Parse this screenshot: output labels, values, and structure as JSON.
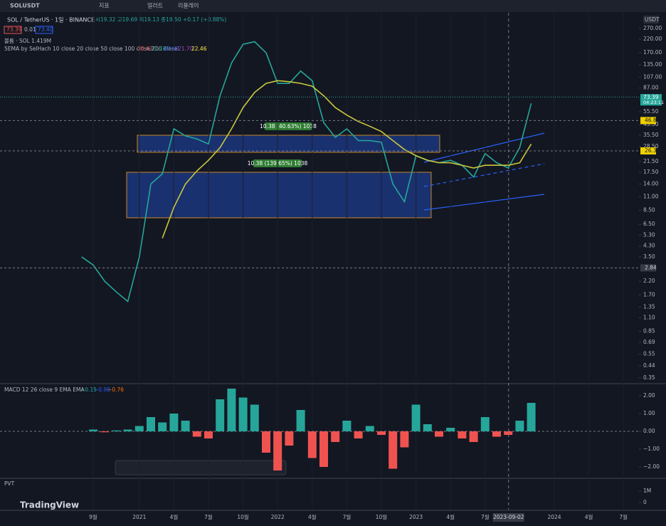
{
  "toolbar": {
    "symbol": "SOLUSDT",
    "indicators": "지표",
    "alerts": "얼러트",
    "replay": "리플레이"
  },
  "header": {
    "ohlc": "시19.32 고19.69 저19.13 종19.50 +0.17 (+0.88%)",
    "bid": "73.39",
    "spread": "0.01",
    "ask": "73.40",
    "volume": "볼륨 · SOL 1.419M",
    "ema_legend": "5EMA by SelHach 10 close 20 close 50 close 100 close 200 close",
    "ema_values": [
      "20.42",
      "21.18",
      "21.91",
      "21.70",
      "22.46"
    ]
  },
  "brand": "TradingView",
  "chart_data": [
    {
      "type": "line",
      "title": "SOL / TetherUS · 1일 · BINANCE",
      "log_scale": true,
      "currency": "USDT",
      "x": [
        "2020-08",
        "2020-09",
        "2020-10",
        "2020-11",
        "2020-12",
        "2021-01",
        "2021-02",
        "2021-03",
        "2021-04",
        "2021-05",
        "2021-06",
        "2021-07",
        "2021-08",
        "2021-09",
        "2021-10",
        "2021-11",
        "2021-12",
        "2022-01",
        "2022-02",
        "2022-03",
        "2022-04",
        "2022-05",
        "2022-06",
        "2022-07",
        "2022-08",
        "2022-09",
        "2022-10",
        "2022-11",
        "2022-12",
        "2023-01",
        "2023-02",
        "2023-03",
        "2023-04",
        "2023-05",
        "2023-06",
        "2023-07",
        "2023-08",
        "2023-09",
        "2023-10",
        "2023-11"
      ],
      "series": [
        {
          "color": "#26a69a",
          "values": [
            3.5,
            3.0,
            2.2,
            1.8,
            1.5,
            3.5,
            14,
            17,
            40,
            35,
            33,
            30,
            75,
            140,
            200,
            210,
            170,
            95,
            95,
            120,
            100,
            45,
            34,
            40,
            32,
            32,
            31,
            14,
            10,
            24,
            22,
            21,
            22,
            20,
            16,
            25,
            21,
            19,
            28,
            65
          ]
        },
        {
          "color": "#c8c83c",
          "values": [
            null,
            null,
            null,
            null,
            null,
            null,
            null,
            5,
            9,
            14,
            18,
            22,
            28,
            40,
            60,
            80,
            95,
            100,
            98,
            95,
            90,
            75,
            60,
            52,
            46,
            42,
            38,
            32,
            27,
            24,
            22,
            21,
            21,
            20,
            19,
            20,
            20,
            20,
            21,
            30
          ]
        }
      ],
      "ylim": [
        0.35,
        270
      ],
      "yticks": [
        {
          "value": 270,
          "label": "270.00"
        },
        {
          "value": 220,
          "label": "220.00"
        },
        {
          "value": 170,
          "label": "170.00"
        },
        {
          "value": 135,
          "label": "135.00"
        },
        {
          "value": 107,
          "label": "107.00"
        },
        {
          "value": 87,
          "label": "87.00"
        },
        {
          "value": 70,
          "label": "70.00"
        },
        {
          "value": 55.5,
          "label": "55.50"
        },
        {
          "value": 43.5,
          "label": "43.50"
        },
        {
          "value": 35.5,
          "label": "35.50"
        },
        {
          "value": 28.5,
          "label": "28.50"
        },
        {
          "value": 21.5,
          "label": "21.50"
        },
        {
          "value": 17.5,
          "label": "17.50"
        },
        {
          "value": 14,
          "label": "14.00"
        },
        {
          "value": 11,
          "label": "11.00"
        },
        {
          "value": 8.5,
          "label": "8.50"
        },
        {
          "value": 6.5,
          "label": "6.50"
        },
        {
          "value": 5.3,
          "label": "5.30"
        },
        {
          "value": 4.3,
          "label": "4.30"
        },
        {
          "value": 3.5,
          "label": "3.50"
        },
        {
          "value": 2.2,
          "label": "2.20"
        },
        {
          "value": 1.7,
          "label": "1.70"
        },
        {
          "value": 1.35,
          "label": "1.35"
        },
        {
          "value": 1.1,
          "label": "1.10"
        },
        {
          "value": 0.85,
          "label": "0.85"
        },
        {
          "value": 0.69,
          "label": "0.69"
        },
        {
          "value": 0.55,
          "label": "0.55"
        },
        {
          "value": 0.44,
          "label": "0.44"
        },
        {
          "value": 0.35,
          "label": "0.35"
        }
      ],
      "xticks": [
        {
          "value": "2020-09",
          "label": "9월"
        },
        {
          "value": "2021-01",
          "label": "2021"
        },
        {
          "value": "2021-04",
          "label": "4월"
        },
        {
          "value": "2021-07",
          "label": "7월"
        },
        {
          "value": "2021-10",
          "label": "10월"
        },
        {
          "value": "2022-01",
          "label": "2022"
        },
        {
          "value": "2022-04",
          "label": "4월"
        },
        {
          "value": "2022-07",
          "label": "7월"
        },
        {
          "value": "2022-10",
          "label": "10월"
        },
        {
          "value": "2023-01",
          "label": "2023"
        },
        {
          "value": "2023-04",
          "label": "4월"
        },
        {
          "value": "2023-07",
          "label": "7월"
        },
        {
          "value": "2024-01",
          "label": "2024"
        },
        {
          "value": "2024-04",
          "label": "4월"
        },
        {
          "value": "2024-07",
          "label": "7월"
        }
      ],
      "last_price": 73.39,
      "countdown": "04:23:11",
      "price_lines": [
        46.84,
        26.3,
        2.84
      ],
      "crosshair_date": "2023-09-02",
      "annotations": [
        "10.38 (40.63%) 1038",
        "10.38 (139.65%) 1038"
      ]
    },
    {
      "type": "bar",
      "title": "MACD 12 26 close 9 EMA EMA",
      "legend_values": [
        "−0.15",
        "−0.90",
        "−0.76"
      ],
      "colors": [
        "#26a69a",
        "#ef5350"
      ],
      "x": [
        "2020-08",
        "2020-09",
        "2020-10",
        "2020-11",
        "2020-12",
        "2021-01",
        "2021-02",
        "2021-03",
        "2021-04",
        "2021-05",
        "2021-06",
        "2021-07",
        "2021-08",
        "2021-09",
        "2021-10",
        "2021-11",
        "2021-12",
        "2022-01",
        "2022-02",
        "2022-03",
        "2022-04",
        "2022-05",
        "2022-06",
        "2022-07",
        "2022-08",
        "2022-09",
        "2022-10",
        "2022-11",
        "2022-12",
        "2023-01",
        "2023-02",
        "2023-03",
        "2023-04",
        "2023-05",
        "2023-06",
        "2023-07",
        "2023-08",
        "2023-09",
        "2023-10",
        "2023-11"
      ],
      "values": [
        0,
        0.1,
        -0.05,
        0.05,
        0.1,
        0.3,
        0.8,
        0.5,
        1.0,
        0.6,
        -0.3,
        -0.4,
        1.8,
        2.4,
        1.9,
        1.5,
        -1.2,
        -2.2,
        -0.8,
        1.2,
        -1.5,
        -2.0,
        -0.6,
        0.6,
        -0.4,
        0.3,
        -0.2,
        -2.1,
        -0.9,
        1.5,
        0.4,
        -0.3,
        0.2,
        -0.4,
        -0.6,
        0.8,
        -0.3,
        -0.2,
        0.6,
        1.6
      ],
      "ylim": [
        -2.56,
        2.64
      ],
      "yticks": [
        {
          "value": 2,
          "label": "2.00"
        },
        {
          "value": 1,
          "label": "1.00"
        },
        {
          "value": 0,
          "label": "0.00"
        },
        {
          "value": -1,
          "label": "−1.00"
        },
        {
          "value": -2,
          "label": "−2.00"
        }
      ]
    },
    {
      "type": "indicator",
      "title": "PVT",
      "ylim": [
        -625000,
        2125000
      ],
      "yticks": [
        {
          "value": 1000000,
          "label": "1M"
        },
        0
      ]
    }
  ]
}
